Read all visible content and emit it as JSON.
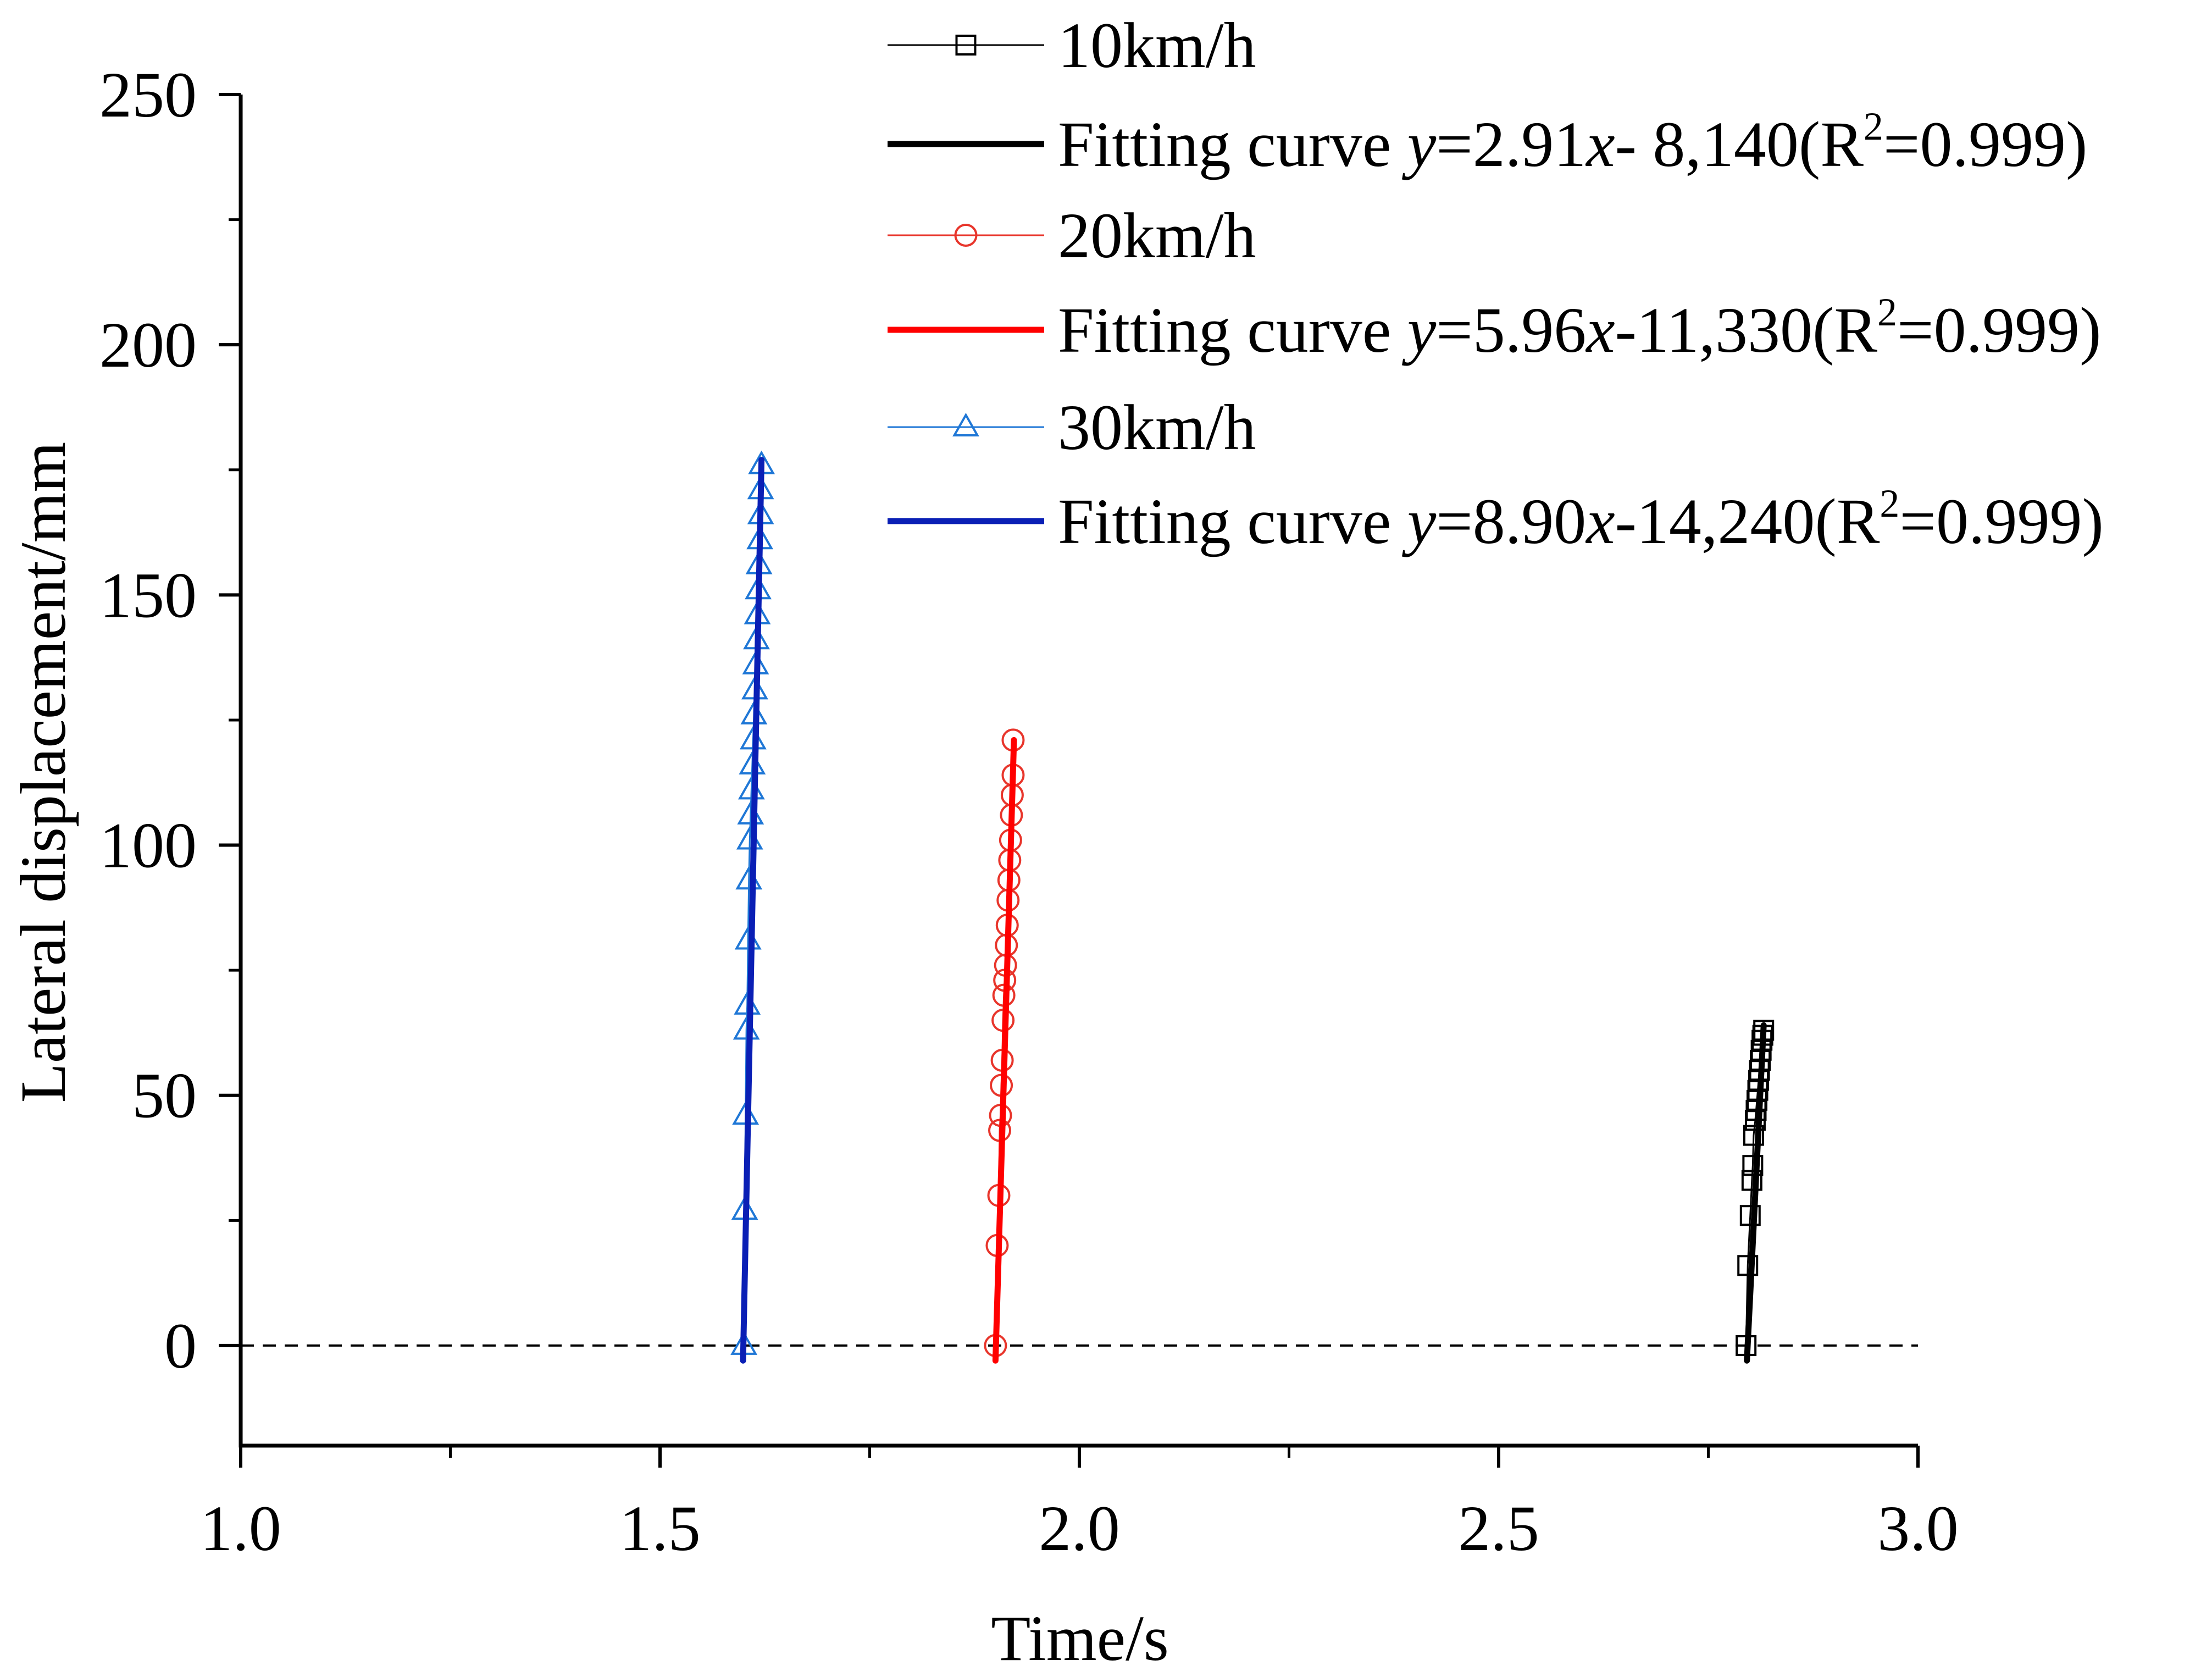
{
  "chart_data": {
    "type": "scatter",
    "xlabel": "Time/s",
    "ylabel": "Lateral displacement/mm",
    "xlim": [
      1.0,
      3.0
    ],
    "ylim": [
      -20,
      250
    ],
    "xticks": [
      "1.0",
      "1.5",
      "2.0",
      "2.5",
      "3.0"
    ],
    "yticks": [
      "0",
      "50",
      "100",
      "150",
      "200",
      "250"
    ],
    "reference_line": {
      "y": 0,
      "style": "dashed"
    },
    "series": [
      {
        "name": "10km/h",
        "kind": "markers",
        "marker": "square",
        "color": "#000000",
        "x": [
          2.795,
          2.797,
          2.8,
          2.802,
          2.803,
          2.804,
          2.806,
          2.807,
          2.808,
          2.809,
          2.81,
          2.811,
          2.812,
          2.813,
          2.814,
          2.815,
          2.816
        ],
        "y": [
          0,
          16,
          26,
          33,
          36,
          42,
          45,
          47,
          49,
          51,
          53,
          55,
          57,
          59,
          61,
          62,
          63
        ]
      },
      {
        "name": "Fitting curve",
        "equation": {
          "y_var": "y",
          "p1": "=2.91",
          "x_var": "x",
          "p2": "- 8,140(R",
          "sup": "2",
          "p3": "=0.999)"
        },
        "kind": "line",
        "color": "#000000",
        "x": [
          2.796,
          2.816
        ],
        "y": [
          -3,
          64
        ]
      },
      {
        "name": "20km/h",
        "kind": "markers",
        "marker": "circle",
        "color": "#e8352b",
        "x": [
          1.9,
          1.902,
          1.904,
          1.905,
          1.906,
          1.907,
          1.908,
          1.909,
          1.91,
          1.911,
          1.912,
          1.913,
          1.914,
          1.915,
          1.916,
          1.917,
          1.918,
          1.919,
          1.92,
          1.921,
          1.921
        ],
        "y": [
          0,
          20,
          30,
          43,
          46,
          52,
          57,
          65,
          70,
          73,
          76,
          80,
          84,
          89,
          93,
          97,
          101,
          106,
          110,
          114,
          121
        ],
        "note": "markers densely stacked from ~60 to ~121 mm"
      },
      {
        "name": "Fitting curve",
        "equation": {
          "y_var": "y",
          "p1": "=5.96",
          "x_var": "x",
          "p2": "-11,330(R",
          "sup": "2",
          "p3": "=0.999)"
        },
        "kind": "line",
        "color": "#ff0000",
        "x": [
          1.9,
          1.922
        ],
        "y": [
          -3,
          121
        ]
      },
      {
        "name": "30km/h",
        "kind": "markers",
        "marker": "triangle",
        "color": "#1f77d6",
        "x": [
          1.6,
          1.601,
          1.602,
          1.603,
          1.604,
          1.605,
          1.606,
          1.607,
          1.608,
          1.609,
          1.61,
          1.611,
          1.612,
          1.613,
          1.614,
          1.615,
          1.616,
          1.617,
          1.618,
          1.619,
          1.62,
          1.62,
          1.621
        ],
        "y": [
          0,
          27,
          46,
          63,
          68,
          81,
          93,
          101,
          106,
          111,
          116,
          121,
          126,
          131,
          136,
          141,
          146,
          151,
          156,
          161,
          166,
          171,
          176
        ]
      },
      {
        "name": "Fitting curve",
        "equation": {
          "y_var": "y",
          "p1": "=8.90",
          "x_var": "x",
          "p2": "-14,240(R",
          "sup": "2",
          "p3": "=0.999)"
        },
        "kind": "line",
        "color": "#0a1fb5",
        "x": [
          1.599,
          1.621
        ],
        "y": [
          -3,
          177
        ]
      }
    ]
  }
}
